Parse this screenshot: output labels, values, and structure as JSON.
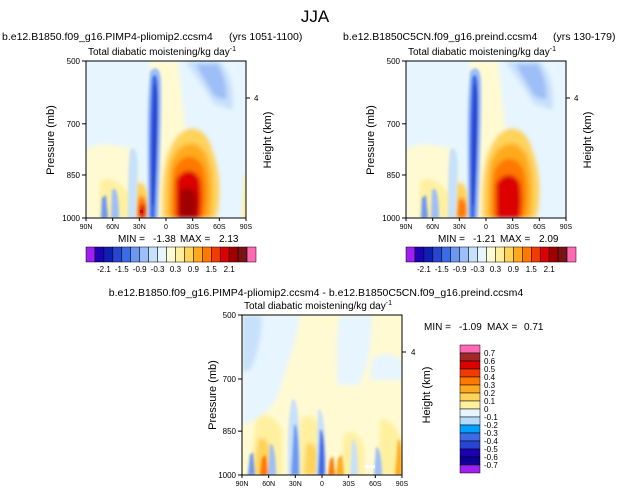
{
  "page_title": "JJA",
  "chart_data": [
    {
      "type": "heatmap",
      "experiment": "b.e12.B1850.f09_g16.PIMP4-pliomip2.ccsm4",
      "years": "(yrs 1051-1100)",
      "subtitle_text": "Total diabatic moistening/kg day",
      "subtitle_exp": "-1",
      "ylabel": "Pressure (mb)",
      "y2label": "Height (km)",
      "y2ticks": [
        "4"
      ],
      "xticks": [
        "90N",
        "60N",
        "30N",
        "0",
        "30S",
        "60S",
        "90S"
      ],
      "yticks": [
        "500",
        "700",
        "850",
        "1000"
      ],
      "min_label": "MIN =",
      "min_value": "-1.38",
      "max_label": "MAX =",
      "max_value": "2.13"
    },
    {
      "type": "heatmap",
      "experiment": "b.e12.B1850C5CN.f09_g16.preind.ccsm4",
      "years": "(yrs 130-179)",
      "subtitle_text": "Total diabatic moistening/kg day",
      "subtitle_exp": "-1",
      "ylabel": "Pressure (mb)",
      "y2label": "Height (km)",
      "y2ticks": [
        "4"
      ],
      "xticks": [
        "90N",
        "60N",
        "30N",
        "0",
        "30S",
        "60S",
        "90S"
      ],
      "yticks": [
        "500",
        "700",
        "850",
        "1000"
      ],
      "min_label": "MIN =",
      "min_value": "-1.21",
      "max_label": "MAX =",
      "max_value": "2.09"
    },
    {
      "type": "heatmap",
      "title": "b.e12.B1850.f09_g16.PIMP4-pliomip2.ccsm4 - b.e12.B1850C5CN.f09_g16.preind.ccsm4",
      "subtitle_text": "Total diabatic moistening/kg day",
      "subtitle_exp": "-1",
      "ylabel": "Pressure (mb)",
      "y2label": "Height (km)",
      "y2ticks": [
        "4"
      ],
      "xticks": [
        "90N",
        "60N",
        "30N",
        "0",
        "30S",
        "60S",
        "90S"
      ],
      "yticks": [
        "500",
        "700",
        "850",
        "1000"
      ],
      "min_label": "MIN =",
      "min_value": "-1.09",
      "max_label": "MAX =",
      "max_value": "0.71"
    }
  ],
  "colorbar_abs": {
    "labels": [
      "-2.1",
      "-1.5",
      "-0.9",
      "-0.3",
      "0.3",
      "0.9",
      "1.5",
      "2.1"
    ],
    "colors": [
      "#a020f0",
      "#1e00b4",
      "#0f1fb4",
      "#2845d2",
      "#3c6be6",
      "#6e97f0",
      "#9ebef8",
      "#c8e1fa",
      "#e6f5ff",
      "#fffad2",
      "#fff0a0",
      "#ffd25a",
      "#ffaa1e",
      "#ff7800",
      "#f03c00",
      "#dc0000",
      "#a00000",
      "#781414",
      "#ff69b4"
    ]
  },
  "colorbar_diff": {
    "labels": [
      "0.7",
      "0.6",
      "0.5",
      "0.4",
      "0.3",
      "0.2",
      "0.1",
      "0",
      "-0.1",
      "-0.2",
      "-0.3",
      "-0.4",
      "-0.5",
      "-0.6",
      "-0.7"
    ],
    "colors": [
      "#ff69b4",
      "#a02828",
      "#dc0000",
      "#f03c00",
      "#ff7800",
      "#ffaa1e",
      "#ffd25a",
      "#fff0a0",
      "#e6f5ff",
      "#b4dcfa",
      "#00a0ff",
      "#3c6be6",
      "#2845d2",
      "#1e00b4",
      "#0f0096",
      "#a020f0"
    ]
  }
}
